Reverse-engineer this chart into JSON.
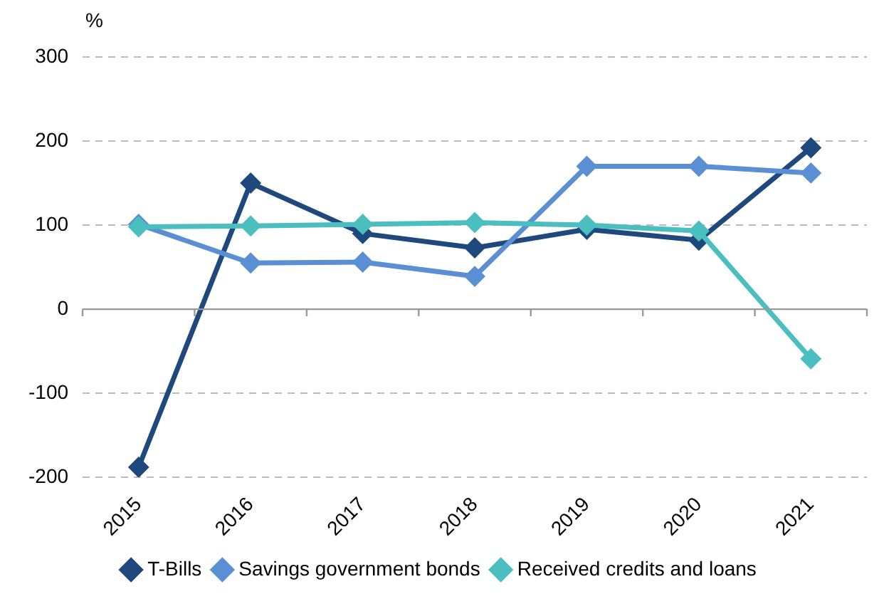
{
  "chart_data": {
    "type": "line",
    "ylabel": "%",
    "categories": [
      "2015",
      "2016",
      "2017",
      "2018",
      "2019",
      "2020",
      "2021"
    ],
    "series": [
      {
        "name": "T-Bills",
        "color": "#1f497d",
        "values": [
          -188,
          150,
          90,
          73,
          95,
          82,
          192
        ]
      },
      {
        "name": "Savings government bonds",
        "color": "#5b8fd4",
        "values": [
          101,
          55,
          56,
          39,
          170,
          170,
          162
        ]
      },
      {
        "name": "Received credits and loans",
        "color": "#4bbfc0",
        "values": [
          98,
          99,
          101,
          103,
          100,
          93,
          -59
        ]
      }
    ],
    "ylim": [
      -200,
      300
    ],
    "yticks": [
      -200,
      -100,
      0,
      100,
      200,
      300
    ],
    "grid": "y",
    "legend": "bottom",
    "marker": "diamond",
    "line_style": "solid"
  }
}
